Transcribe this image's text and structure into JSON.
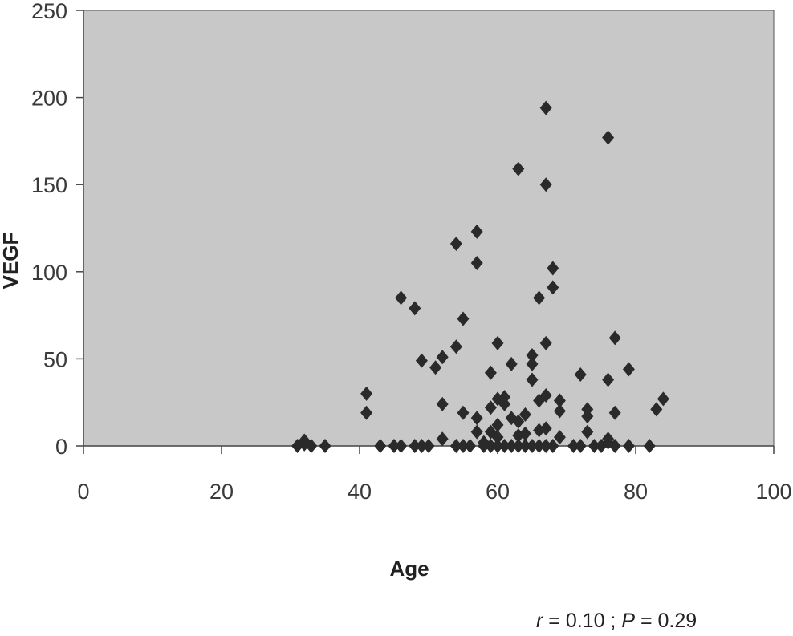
{
  "chart_data": {
    "type": "scatter",
    "xlabel": "Age",
    "ylabel": "VEGF",
    "xlim": [
      0,
      100
    ],
    "ylim": [
      0,
      250
    ],
    "x_ticks": [
      0,
      20,
      40,
      60,
      80,
      100
    ],
    "y_ticks": [
      0,
      50,
      100,
      150,
      200,
      250
    ],
    "grid": false,
    "marker": "diamond",
    "colors": {
      "plot_area": "#c8c8c8",
      "marker": "#2a2a2a",
      "axis": "#444444"
    },
    "annotation": {
      "r_symbol": "r",
      "r_text": " = 0.10 ; ",
      "p_symbol": "P",
      "p_text": " = 0.29"
    },
    "points": [
      [
        31,
        0
      ],
      [
        32,
        1
      ],
      [
        32,
        3
      ],
      [
        33,
        0
      ],
      [
        35,
        0
      ],
      [
        41,
        30
      ],
      [
        41,
        19
      ],
      [
        43,
        0
      ],
      [
        45,
        0
      ],
      [
        46,
        0
      ],
      [
        46,
        85
      ],
      [
        48,
        79
      ],
      [
        48,
        0
      ],
      [
        49,
        49
      ],
      [
        49,
        0
      ],
      [
        50,
        0
      ],
      [
        51,
        45
      ],
      [
        52,
        51
      ],
      [
        52,
        24
      ],
      [
        52,
        4
      ],
      [
        54,
        116
      ],
      [
        54,
        57
      ],
      [
        54,
        0
      ],
      [
        55,
        73
      ],
      [
        55,
        19
      ],
      [
        55,
        0
      ],
      [
        56,
        0
      ],
      [
        57,
        123
      ],
      [
        57,
        105
      ],
      [
        57,
        16
      ],
      [
        57,
        8
      ],
      [
        58,
        0
      ],
      [
        58,
        2
      ],
      [
        59,
        42
      ],
      [
        59,
        22
      ],
      [
        59,
        8
      ],
      [
        59,
        0
      ],
      [
        60,
        59
      ],
      [
        60,
        27
      ],
      [
        60,
        12
      ],
      [
        60,
        5
      ],
      [
        60,
        0
      ],
      [
        61,
        28
      ],
      [
        61,
        24
      ],
      [
        61,
        0
      ],
      [
        62,
        47
      ],
      [
        62,
        16
      ],
      [
        62,
        0
      ],
      [
        63,
        159
      ],
      [
        63,
        14
      ],
      [
        63,
        6
      ],
      [
        63,
        0
      ],
      [
        64,
        18
      ],
      [
        64,
        7
      ],
      [
        64,
        0
      ],
      [
        65,
        52
      ],
      [
        65,
        47
      ],
      [
        65,
        38
      ],
      [
        65,
        0
      ],
      [
        66,
        85
      ],
      [
        66,
        26
      ],
      [
        66,
        9
      ],
      [
        66,
        0
      ],
      [
        67,
        194
      ],
      [
        67,
        150
      ],
      [
        67,
        59
      ],
      [
        67,
        29
      ],
      [
        67,
        10
      ],
      [
        67,
        0
      ],
      [
        68,
        102
      ],
      [
        68,
        91
      ],
      [
        68,
        0
      ],
      [
        69,
        26
      ],
      [
        69,
        20
      ],
      [
        69,
        5
      ],
      [
        71,
        0
      ],
      [
        72,
        41
      ],
      [
        72,
        0
      ],
      [
        73,
        21
      ],
      [
        73,
        17
      ],
      [
        73,
        8
      ],
      [
        74,
        0
      ],
      [
        75,
        0
      ],
      [
        76,
        177
      ],
      [
        76,
        38
      ],
      [
        76,
        4
      ],
      [
        76,
        2
      ],
      [
        77,
        62
      ],
      [
        77,
        19
      ],
      [
        77,
        0
      ],
      [
        79,
        44
      ],
      [
        79,
        0
      ],
      [
        82,
        0
      ],
      [
        83,
        21
      ],
      [
        84,
        27
      ]
    ]
  }
}
